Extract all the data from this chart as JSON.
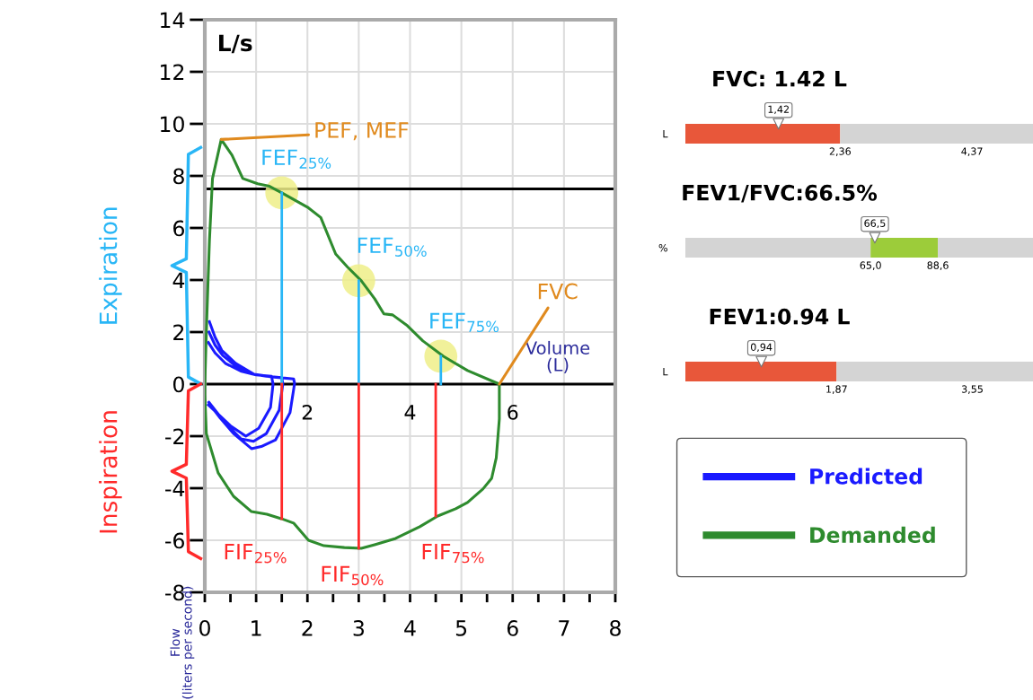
{
  "chart_data": [
    {
      "type": "line",
      "xlabel": "Volume\n(L)",
      "ylabel": "Flow\n(liters per second)",
      "xlim": [
        0,
        8
      ],
      "ylim": [
        -8,
        14
      ],
      "xticks": [
        0,
        {
          "value": 0.5,
          "label": null
        },
        1,
        {
          "value": 1.5,
          "label": null
        },
        2,
        {
          "value": 2.5,
          "label": null
        },
        3,
        {
          "value": 3.5,
          "label": null
        },
        4,
        {
          "value": 4.5,
          "label": null
        },
        5,
        {
          "value": 5.5,
          "label": null
        },
        6,
        {
          "value": 6.5,
          "label": null
        },
        7,
        {
          "value": 7.5,
          "label": null
        },
        8
      ],
      "yticks": [
        -8,
        -6,
        -4,
        -2,
        0,
        2,
        4,
        6,
        8,
        10,
        12,
        14
      ],
      "grid": true,
      "legend": "right",
      "ref_lines": [
        {
          "axis": "y",
          "value": 0,
          "color": "#000000"
        },
        {
          "axis": "y",
          "value": 7.5,
          "color": "#000000"
        }
      ],
      "series": [
        {
          "name": "Predicted",
          "color": "#1a1aff",
          "x": [
            0.09,
            0.2,
            0.33,
            0.6,
            0.96,
            1.3,
            1.73,
            1.75,
            1.66,
            1.38,
            1.1,
            0.91,
            0.56,
            0.3,
            0.09,
            null,
            0.08,
            0.2,
            0.35,
            0.6,
            0.9,
            1.2,
            1.5,
            1.52,
            1.45,
            1.2,
            0.95,
            0.7,
            0.4,
            0.08,
            null,
            0.07,
            0.2,
            0.4,
            0.7,
            1.0,
            1.3,
            1.33,
            1.28,
            1.05,
            0.8,
            0.5,
            0.07
          ],
          "values": [
            2.4,
            1.8,
            1.3,
            0.8,
            0.38,
            0.28,
            0.2,
            0.03,
            -1.1,
            -2.14,
            -2.4,
            -2.48,
            -1.9,
            -1.3,
            -0.76,
            null,
            2.0,
            1.5,
            1.1,
            0.7,
            0.4,
            0.3,
            0.25,
            0.0,
            -1.0,
            -1.9,
            -2.2,
            -2.1,
            -1.5,
            -0.7,
            null,
            1.6,
            1.2,
            0.8,
            0.5,
            0.35,
            0.3,
            0.0,
            -0.9,
            -1.7,
            -2.0,
            -1.6,
            -0.8
          ]
        },
        {
          "name": "Demanded",
          "color": "#2e8b2e",
          "x": [
            0,
            0.03,
            0.09,
            0.15,
            0.32,
            0.53,
            0.74,
            1.03,
            1.26,
            1.5,
            2.0,
            2.26,
            2.55,
            2.78,
            3.05,
            3.31,
            3.49,
            3.66,
            3.95,
            4.25,
            4.65,
            5.12,
            5.74,
            null,
            5.74,
            5.74,
            5.68,
            5.59,
            5.42,
            5.12,
            4.89,
            4.54,
            4.19,
            3.72,
            3.31,
            3.05,
            2.72,
            2.32,
            2.02,
            1.73,
            1.49,
            1.21,
            0.91,
            0.56,
            0.26,
            0.03,
            0.0,
            0
          ],
          "values": [
            0,
            2.0,
            5.5,
            7.9,
            9.4,
            8.8,
            7.9,
            7.7,
            7.6,
            7.35,
            6.8,
            6.4,
            5.0,
            4.5,
            3.97,
            3.28,
            2.7,
            2.66,
            2.24,
            1.66,
            1.07,
            0.52,
            0.0,
            null,
            0.0,
            -1.34,
            -2.83,
            -3.62,
            -4.03,
            -4.55,
            -4.79,
            -5.07,
            -5.48,
            -5.93,
            -6.17,
            -6.31,
            -6.28,
            -6.21,
            -6.0,
            -5.34,
            -5.17,
            -5.0,
            -4.9,
            -4.31,
            -3.41,
            -1.9,
            -0.4,
            0
          ]
        },
        {
          "color": "#29b6f6",
          "x": [
            1.5,
            1.5
          ],
          "values": [
            0,
            7.35
          ]
        },
        {
          "color": "#29b6f6",
          "x": [
            3.0,
            3.0
          ],
          "values": [
            0,
            3.97
          ]
        },
        {
          "color": "#29b6f6",
          "x": [
            4.6,
            4.6
          ],
          "values": [
            0,
            1.07
          ]
        },
        {
          "color": "#ff2a2a",
          "x": [
            1.5,
            1.5
          ],
          "values": [
            0,
            -5.17
          ]
        },
        {
          "color": "#ff2a2a",
          "x": [
            3.0,
            3.0
          ],
          "values": [
            0,
            -6.31
          ]
        },
        {
          "color": "#ff2a2a",
          "x": [
            4.5,
            4.5
          ],
          "values": [
            0,
            -5.07
          ]
        },
        {
          "type": "scatter",
          "marker": "circle",
          "color": "#eeee88",
          "x": [
            1.5,
            3.0,
            4.6
          ],
          "values": [
            7.35,
            3.97,
            1.07
          ]
        }
      ],
      "annotations": [
        "L/s",
        {
          "text": "PEF, MEF",
          "x": 0.32,
          "y": 9.4
        },
        {
          "text": "FEF$_{25%}$",
          "x": 1.5,
          "y": 7.35
        },
        {
          "text": "FEF$_{50%}$",
          "x": 3.0,
          "y": 3.97
        },
        {
          "text": "FEF$_{75%}$",
          "x": 4.6,
          "y": 1.07
        },
        {
          "text": "FVC",
          "x": 5.74,
          "y": 0
        },
        {
          "text": "FIF$_{25%}$",
          "x": 1.5,
          "y": -5.17
        },
        {
          "text": "FIF$_{50%}$",
          "x": 3.0,
          "y": -6.31
        },
        {
          "text": "FIF$_{75%}$",
          "x": 4.5,
          "y": -5.07
        },
        {
          "text": "2",
          "x": 2,
          "y": 0
        },
        {
          "text": "4",
          "x": 4,
          "y": 0
        },
        {
          "text": "6",
          "x": 6,
          "y": 0
        },
        "Expiration",
        "Inspiration"
      ]
    },
    {
      "type": "bar",
      "orientation": "horizontal",
      "stacked": true,
      "title": "FVC: 1.42 L",
      "categories": [
        "L"
      ],
      "xlim": [
        0,
        5.3
      ],
      "xticks": [
        {
          "value": 2.36,
          "label": "2,36"
        },
        {
          "value": 4.37,
          "label": "4,37"
        }
      ],
      "series": [
        {
          "color": "#e8573a",
          "values": [
            2.36
          ]
        },
        {
          "color": "#d4d4d4",
          "values": [
            2.94
          ]
        },
        {
          "type": "scatter",
          "marker": "triangle",
          "color": "#ffffff",
          "values": [
            1.42
          ],
          "value_labels": [
            "1,42"
          ]
        }
      ]
    },
    {
      "type": "bar",
      "orientation": "horizontal",
      "stacked": true,
      "title": "FEV1/FVC:66.5%",
      "categories": [
        "%"
      ],
      "xlim": [
        0,
        122
      ],
      "xticks": [
        {
          "value": 65.0,
          "label": "65,0"
        },
        {
          "value": 88.6,
          "label": "88,6"
        }
      ],
      "series": [
        {
          "color": "#d4d4d4",
          "values": [
            65.0
          ]
        },
        {
          "color": "#9ccc3a",
          "values": [
            23.6
          ]
        },
        {
          "color": "#d4d4d4",
          "values": [
            33.4
          ]
        },
        {
          "type": "scatter",
          "marker": "triangle",
          "color": "#ffffff",
          "values": [
            66.5
          ],
          "value_labels": [
            "66,5"
          ]
        }
      ]
    },
    {
      "type": "bar",
      "orientation": "horizontal",
      "stacked": true,
      "title": "FEV1:0.94 L",
      "categories": [
        "L"
      ],
      "xlim": [
        0,
        4.3
      ],
      "xticks": [
        {
          "value": 1.87,
          "label": "1,87"
        },
        {
          "value": 3.55,
          "label": "3,55"
        }
      ],
      "series": [
        {
          "color": "#e8573a",
          "values": [
            1.87
          ]
        },
        {
          "color": "#d4d4d4",
          "values": [
            2.43
          ]
        },
        {
          "type": "scatter",
          "marker": "triangle",
          "color": "#ffffff",
          "values": [
            0.94
          ],
          "value_labels": [
            "0,94"
          ]
        }
      ]
    }
  ]
}
